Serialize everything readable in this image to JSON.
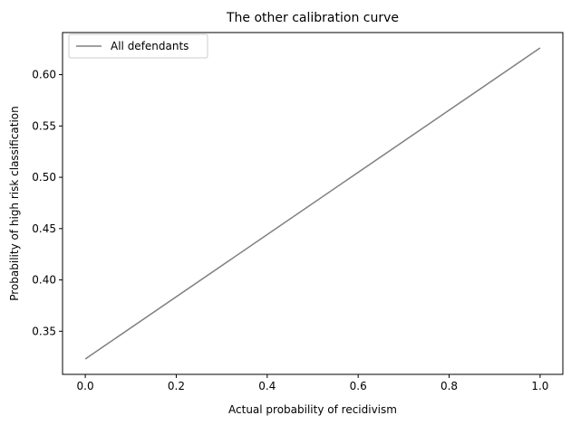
{
  "chart_data": {
    "type": "line",
    "title": "The other calibration curve",
    "xlabel": "Actual probability of recidivism",
    "ylabel": "Probability of high risk classification",
    "xlim": [
      -0.05,
      1.05
    ],
    "ylim": [
      0.308,
      0.641
    ],
    "xticks": [
      0.0,
      0.2,
      0.4,
      0.6,
      0.8,
      1.0
    ],
    "xtick_labels": [
      "0.0",
      "0.2",
      "0.4",
      "0.6",
      "0.8",
      "1.0"
    ],
    "yticks": [
      0.35,
      0.4,
      0.45,
      0.5,
      0.55,
      0.6
    ],
    "ytick_labels": [
      "0.35",
      "0.40",
      "0.45",
      "0.50",
      "0.55",
      "0.60"
    ],
    "grid": false,
    "legend_position": "top-left",
    "series": [
      {
        "name": "All defendants",
        "color": "#808080",
        "x": [
          0.0,
          1.0
        ],
        "y": [
          0.323,
          0.626
        ]
      }
    ]
  }
}
